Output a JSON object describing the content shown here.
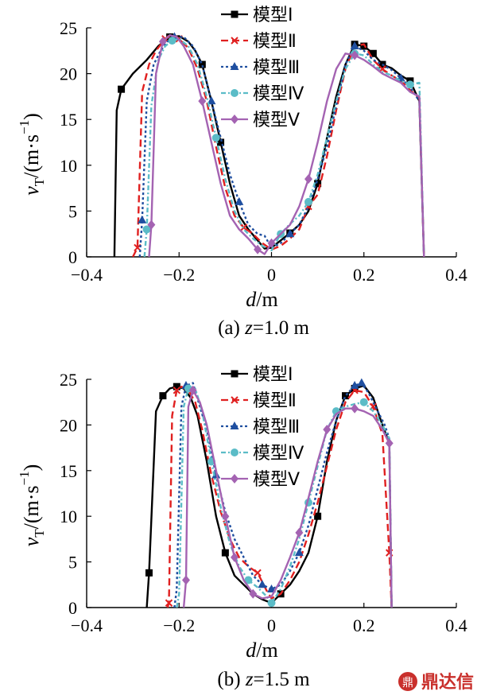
{
  "chart_data": [
    {
      "type": "line",
      "panel": "a",
      "caption_prefix": "(a) ",
      "caption_var": "z",
      "caption_value": "=1.0 m",
      "xlabel_var": "d",
      "xlabel_unit": "/m",
      "ylabel_var": "v",
      "ylabel_sub": "T",
      "ylabel_unit": "/(m·s",
      "ylabel_exp": "−1",
      "ylabel_close": ")",
      "xlim": [
        -0.4,
        0.4
      ],
      "ylim": [
        0,
        25
      ],
      "xticks": [
        -0.4,
        -0.2,
        0,
        0.2,
        0.4
      ],
      "xtick_labels": [
        "−0.4",
        "−0.2",
        "0",
        "0.2",
        "0.4"
      ],
      "yticks": [
        0,
        5,
        10,
        15,
        20,
        25
      ],
      "ytick_labels": [
        "0",
        "5",
        "10",
        "15",
        "20",
        "25"
      ],
      "legend_position": "top-center",
      "series": [
        {
          "name": "模型Ⅰ",
          "color": "#000000",
          "dash": "",
          "marker": "square",
          "x": [
            -0.34,
            -0.335,
            -0.325,
            -0.3,
            -0.27,
            -0.245,
            -0.22,
            -0.2,
            -0.18,
            -0.165,
            -0.15,
            -0.13,
            -0.11,
            -0.09,
            -0.07,
            -0.05,
            -0.03,
            -0.015,
            0.0,
            0.02,
            0.04,
            0.06,
            0.08,
            0.1,
            0.12,
            0.14,
            0.16,
            0.18,
            0.2,
            0.22,
            0.24,
            0.26,
            0.28,
            0.3,
            0.32,
            0.33
          ],
          "y": [
            0,
            16,
            18.3,
            20,
            21.5,
            23,
            24,
            24.1,
            23.5,
            22.5,
            21,
            17,
            12.5,
            8,
            4.5,
            3,
            1.8,
            0.9,
            1,
            1.8,
            2.6,
            3.5,
            5,
            8,
            13,
            17.5,
            21,
            23.2,
            23,
            22.2,
            21,
            20.6,
            19.8,
            19.2,
            17,
            0
          ],
          "marker_every": [
            2,
            6,
            10,
            12,
            20,
            23,
            27,
            28,
            29,
            30,
            33
          ]
        },
        {
          "name": "模型Ⅱ",
          "color": "#e02020",
          "dash": "9,5",
          "marker": "x",
          "x": [
            -0.3,
            -0.29,
            -0.28,
            -0.265,
            -0.25,
            -0.23,
            -0.215,
            -0.2,
            -0.18,
            -0.16,
            -0.14,
            -0.12,
            -0.1,
            -0.08,
            -0.06,
            -0.04,
            -0.02,
            0.0,
            0.02,
            0.04,
            0.06,
            0.08,
            0.1,
            0.12,
            0.14,
            0.16,
            0.18,
            0.2,
            0.22,
            0.24,
            0.26,
            0.28,
            0.3,
            0.32,
            0.33
          ],
          "y": [
            0,
            1,
            18,
            21,
            22.5,
            23.8,
            24.2,
            23.8,
            22.8,
            20.5,
            17,
            12,
            7.5,
            4.5,
            3.2,
            2.5,
            1.5,
            0.8,
            1.2,
            2,
            3,
            5.5,
            6.8,
            11,
            16,
            20.5,
            23,
            23.2,
            21.5,
            20.5,
            19.8,
            19.2,
            18.2,
            17.3,
            0
          ],
          "marker_every": [
            1,
            5,
            7,
            14,
            21,
            29
          ]
        },
        {
          "name": "模型Ⅲ",
          "color": "#1f4fa0",
          "dash": "3,3",
          "marker": "triangle",
          "x": [
            -0.285,
            -0.28,
            -0.27,
            -0.255,
            -0.24,
            -0.225,
            -0.21,
            -0.19,
            -0.17,
            -0.15,
            -0.13,
            -0.11,
            -0.09,
            -0.07,
            -0.05,
            -0.03,
            -0.015,
            0.0,
            0.02,
            0.04,
            0.06,
            0.08,
            0.1,
            0.12,
            0.14,
            0.16,
            0.18,
            0.2,
            0.22,
            0.24,
            0.26,
            0.28,
            0.3,
            0.32,
            0.33
          ],
          "y": [
            0,
            4,
            17,
            21,
            22.5,
            23.5,
            24,
            24,
            23,
            21,
            17,
            13,
            9,
            6,
            3.5,
            2.5,
            2.3,
            1,
            1.5,
            2.5,
            3.5,
            5.5,
            8.5,
            12,
            16.5,
            21,
            23,
            22.5,
            21.5,
            21,
            20.4,
            19.5,
            18.5,
            17,
            0
          ],
          "marker_every": [
            1,
            6,
            10,
            13,
            19,
            26,
            31
          ]
        },
        {
          "name": "模型Ⅳ",
          "color": "#5bbcc7",
          "dash": "6,3,2,3",
          "marker": "circle",
          "x": [
            -0.275,
            -0.27,
            -0.26,
            -0.245,
            -0.23,
            -0.215,
            -0.2,
            -0.18,
            -0.16,
            -0.14,
            -0.12,
            -0.1,
            -0.08,
            -0.06,
            -0.04,
            -0.02,
            0.0,
            0.02,
            0.04,
            0.06,
            0.08,
            0.1,
            0.12,
            0.14,
            0.16,
            0.18,
            0.2,
            0.22,
            0.24,
            0.26,
            0.28,
            0.3,
            0.32,
            0.33
          ],
          "y": [
            0,
            3,
            16.5,
            21.5,
            23,
            23.6,
            23.8,
            23,
            21,
            17.5,
            13,
            8.5,
            5,
            3,
            2,
            1.2,
            0.7,
            2.5,
            3.6,
            4.5,
            6,
            9,
            13,
            17,
            20.5,
            22.2,
            22,
            21,
            20.2,
            19.8,
            19.2,
            18.8,
            19,
            0
          ],
          "marker_every": [
            1,
            5,
            10,
            17,
            20,
            25,
            31
          ]
        },
        {
          "name": "模型Ⅴ",
          "color": "#a463b2",
          "dash": "",
          "marker": "diamond",
          "x": [
            -0.265,
            -0.26,
            -0.25,
            -0.235,
            -0.22,
            -0.205,
            -0.19,
            -0.17,
            -0.15,
            -0.13,
            -0.11,
            -0.09,
            -0.07,
            -0.05,
            -0.03,
            -0.015,
            0.0,
            0.02,
            0.04,
            0.06,
            0.08,
            0.1,
            0.12,
            0.14,
            0.16,
            0.18,
            0.2,
            0.22,
            0.24,
            0.26,
            0.28,
            0.3,
            0.32,
            0.33
          ],
          "y": [
            0,
            3.5,
            20,
            23.5,
            24.2,
            24,
            23,
            21,
            17,
            12.5,
            8,
            4.5,
            3,
            2,
            0.8,
            0.3,
            1.5,
            2.5,
            3.5,
            5.5,
            8.5,
            12.5,
            17,
            20.5,
            22.2,
            22,
            21.5,
            20.8,
            20,
            19.5,
            19,
            18,
            17.5,
            0
          ],
          "marker_every": [
            1,
            3,
            8,
            14,
            16,
            20,
            25
          ]
        }
      ]
    },
    {
      "type": "line",
      "panel": "b",
      "caption_prefix": "(b) ",
      "caption_var": "z",
      "caption_value": "=1.5 m",
      "xlabel_var": "d",
      "xlabel_unit": "/m",
      "ylabel_var": "v",
      "ylabel_sub": "T",
      "ylabel_unit": "/(m·s",
      "ylabel_exp": "−1",
      "ylabel_close": ")",
      "xlim": [
        -0.4,
        0.4
      ],
      "ylim": [
        0,
        25
      ],
      "xticks": [
        -0.4,
        -0.2,
        0,
        0.2,
        0.4
      ],
      "xtick_labels": [
        "−0.4",
        "−0.2",
        "0",
        "0.2",
        "0.4"
      ],
      "yticks": [
        0,
        5,
        10,
        15,
        20,
        25
      ],
      "ytick_labels": [
        "0",
        "5",
        "10",
        "15",
        "20",
        "25"
      ],
      "legend_position": "top-center",
      "series": [
        {
          "name": "模型Ⅰ",
          "color": "#000000",
          "dash": "",
          "marker": "square",
          "x": [
            -0.27,
            -0.265,
            -0.25,
            -0.235,
            -0.22,
            -0.205,
            -0.19,
            -0.175,
            -0.16,
            -0.14,
            -0.12,
            -0.1,
            -0.08,
            -0.06,
            -0.04,
            -0.02,
            0.0,
            0.02,
            0.04,
            0.06,
            0.08,
            0.1,
            0.12,
            0.14,
            0.16,
            0.18,
            0.2,
            0.22,
            0.24,
            0.255,
            0.26
          ],
          "y": [
            0,
            3.8,
            21.5,
            23.2,
            24,
            24.2,
            24,
            23,
            21,
            16,
            10,
            6,
            3.5,
            2.5,
            1.5,
            0.9,
            0.5,
            1.5,
            2.5,
            4,
            6,
            10,
            16,
            20.5,
            23.2,
            24,
            24.3,
            23,
            20,
            18,
            0
          ],
          "marker_every": [
            1,
            3,
            5,
            11,
            17,
            21,
            24,
            25
          ]
        },
        {
          "name": "模型Ⅱ",
          "color": "#e02020",
          "dash": "9,5",
          "marker": "x",
          "x": [
            -0.225,
            -0.222,
            -0.215,
            -0.205,
            -0.195,
            -0.18,
            -0.165,
            -0.15,
            -0.13,
            -0.11,
            -0.09,
            -0.07,
            -0.05,
            -0.03,
            -0.01,
            0.0,
            0.02,
            0.04,
            0.06,
            0.08,
            0.1,
            0.12,
            0.14,
            0.16,
            0.18,
            0.2,
            0.22,
            0.24,
            0.255,
            0.26
          ],
          "y": [
            0,
            0.5,
            21,
            23.8,
            24.2,
            23.8,
            22.5,
            19.5,
            14.5,
            10.5,
            7.5,
            5.5,
            4.5,
            3.8,
            1.8,
            1,
            1.5,
            3,
            5,
            8,
            11.5,
            15.5,
            19.5,
            22.5,
            23.8,
            23.6,
            22,
            19,
            6,
            0
          ],
          "marker_every": [
            1,
            3,
            13,
            24,
            26,
            28
          ]
        },
        {
          "name": "模型Ⅲ",
          "color": "#1f4fa0",
          "dash": "3,3",
          "marker": "triangle",
          "x": [
            -0.21,
            -0.205,
            -0.195,
            -0.185,
            -0.17,
            -0.155,
            -0.14,
            -0.12,
            -0.1,
            -0.08,
            -0.06,
            -0.04,
            -0.02,
            0.0,
            0.02,
            0.04,
            0.06,
            0.08,
            0.1,
            0.12,
            0.14,
            0.16,
            0.18,
            0.195,
            0.21,
            0.23,
            0.245,
            0.255,
            0.26
          ],
          "y": [
            0,
            2,
            22,
            24.3,
            24.6,
            22,
            19.5,
            14.5,
            10.5,
            7.5,
            5.5,
            3.5,
            2.5,
            2,
            2.5,
            4,
            6,
            9,
            13,
            17,
            20.5,
            23.2,
            24.3,
            24.6,
            23.5,
            21.5,
            20,
            18.5,
            0
          ],
          "marker_every": [
            3,
            7,
            12,
            13,
            16,
            22,
            23
          ]
        },
        {
          "name": "模型Ⅳ",
          "color": "#5bbcc7",
          "dash": "6,3,2,3",
          "marker": "circle",
          "x": [
            -0.205,
            -0.2,
            -0.19,
            -0.18,
            -0.165,
            -0.15,
            -0.13,
            -0.11,
            -0.09,
            -0.07,
            -0.05,
            -0.03,
            -0.01,
            0.0,
            0.02,
            0.04,
            0.06,
            0.08,
            0.1,
            0.12,
            0.14,
            0.16,
            0.18,
            0.2,
            0.22,
            0.24,
            0.255,
            0.26
          ],
          "y": [
            0,
            1.5,
            22,
            24,
            24,
            21.5,
            16,
            11,
            7,
            4.5,
            3,
            2.2,
            1.2,
            0.5,
            2,
            4.5,
            7.5,
            11.5,
            15.5,
            19.5,
            21.5,
            22,
            22.3,
            22.5,
            21.5,
            20,
            18.5,
            0
          ],
          "marker_every": [
            3,
            6,
            10,
            13,
            17,
            20,
            23
          ]
        },
        {
          "name": "模型Ⅴ",
          "color": "#a463b2",
          "dash": "",
          "marker": "diamond",
          "x": [
            -0.19,
            -0.185,
            -0.18,
            -0.17,
            -0.155,
            -0.14,
            -0.12,
            -0.1,
            -0.08,
            -0.06,
            -0.04,
            -0.02,
            0.0,
            0.02,
            0.04,
            0.06,
            0.08,
            0.1,
            0.12,
            0.14,
            0.16,
            0.18,
            0.2,
            0.22,
            0.24,
            0.255,
            0.26
          ],
          "y": [
            0,
            3,
            22,
            23.8,
            22.5,
            20,
            15,
            10,
            5.5,
            3,
            1.5,
            1,
            1.2,
            3,
            5.5,
            8.2,
            12,
            16,
            19.5,
            21.2,
            21.8,
            21.8,
            21.5,
            21,
            19.5,
            18,
            0
          ],
          "marker_every": [
            1,
            3,
            7,
            8,
            10,
            15,
            18,
            21,
            25
          ]
        }
      ]
    }
  ],
  "watermark": {
    "text": "鼎达信",
    "symbol": "鼎"
  }
}
